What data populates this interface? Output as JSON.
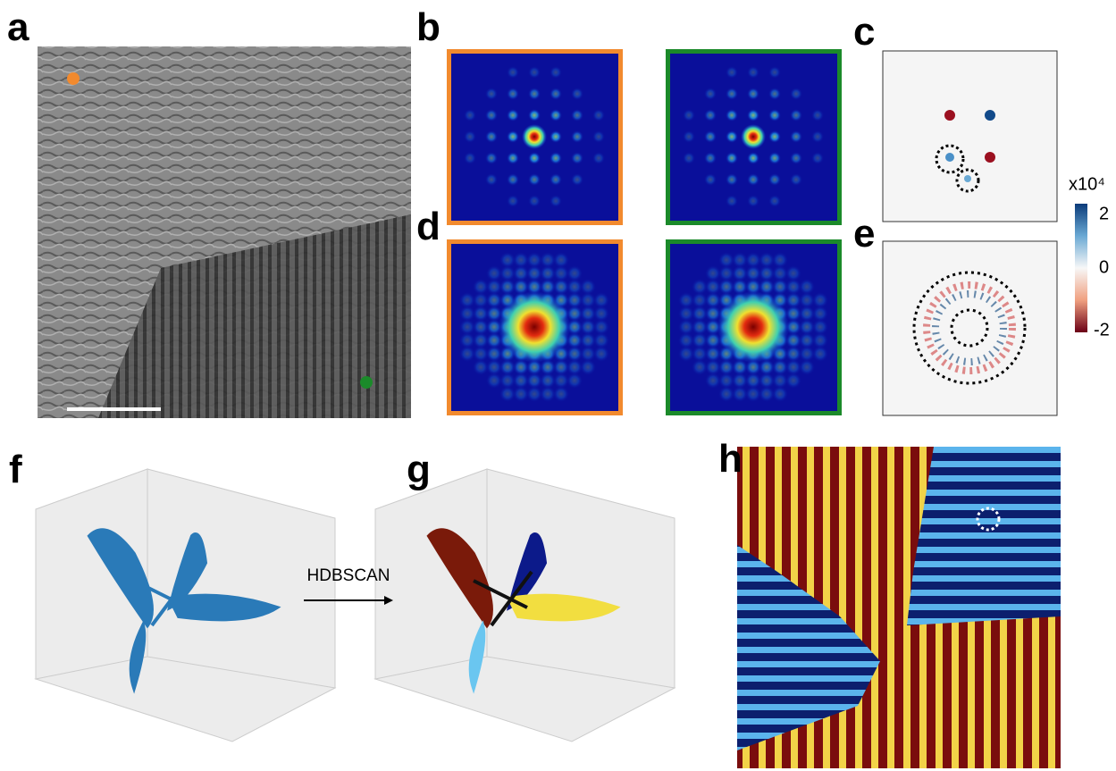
{
  "panel_labels": [
    "a",
    "b",
    "c",
    "d",
    "e",
    "f",
    "g",
    "h"
  ],
  "arrow_label": "HDBSCAN",
  "colorbar": {
    "title": "x10⁴",
    "ticks": [
      "2",
      "0",
      "-2"
    ]
  }
}
